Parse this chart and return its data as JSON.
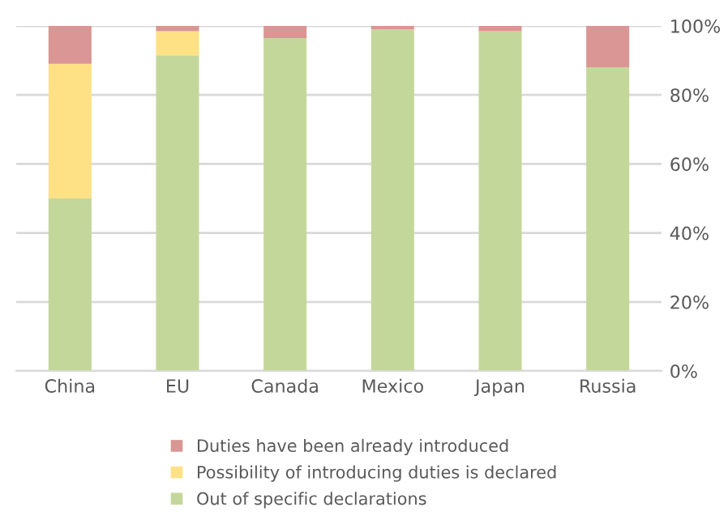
{
  "chart_data": {
    "type": "bar",
    "stacked": true,
    "categories": [
      "China",
      "EU",
      "Canada",
      "Mexico",
      "Japan",
      "Russia"
    ],
    "series": [
      {
        "name": "Out of specific declarations",
        "color": "#c4d79b",
        "values": [
          50,
          91.5,
          96.5,
          99,
          98.5,
          88
        ]
      },
      {
        "name": "Possibility of introducing duties is declared",
        "color": "#fee185",
        "values": [
          39,
          7,
          0,
          0,
          0,
          0
        ]
      },
      {
        "name": "Duties have been already introduced",
        "color": "#da9694",
        "values": [
          11,
          1.5,
          3.5,
          1,
          1.5,
          12
        ]
      }
    ],
    "ylim": [
      0,
      100
    ],
    "yticks": [
      {
        "value": 0,
        "label": "0%"
      },
      {
        "value": 20,
        "label": "20%"
      },
      {
        "value": 40,
        "label": "40%"
      },
      {
        "value": 60,
        "label": "60%"
      },
      {
        "value": 80,
        "label": "80%"
      },
      {
        "value": 100,
        "label": "100%"
      }
    ],
    "grid": "y",
    "legend": "bottom"
  }
}
